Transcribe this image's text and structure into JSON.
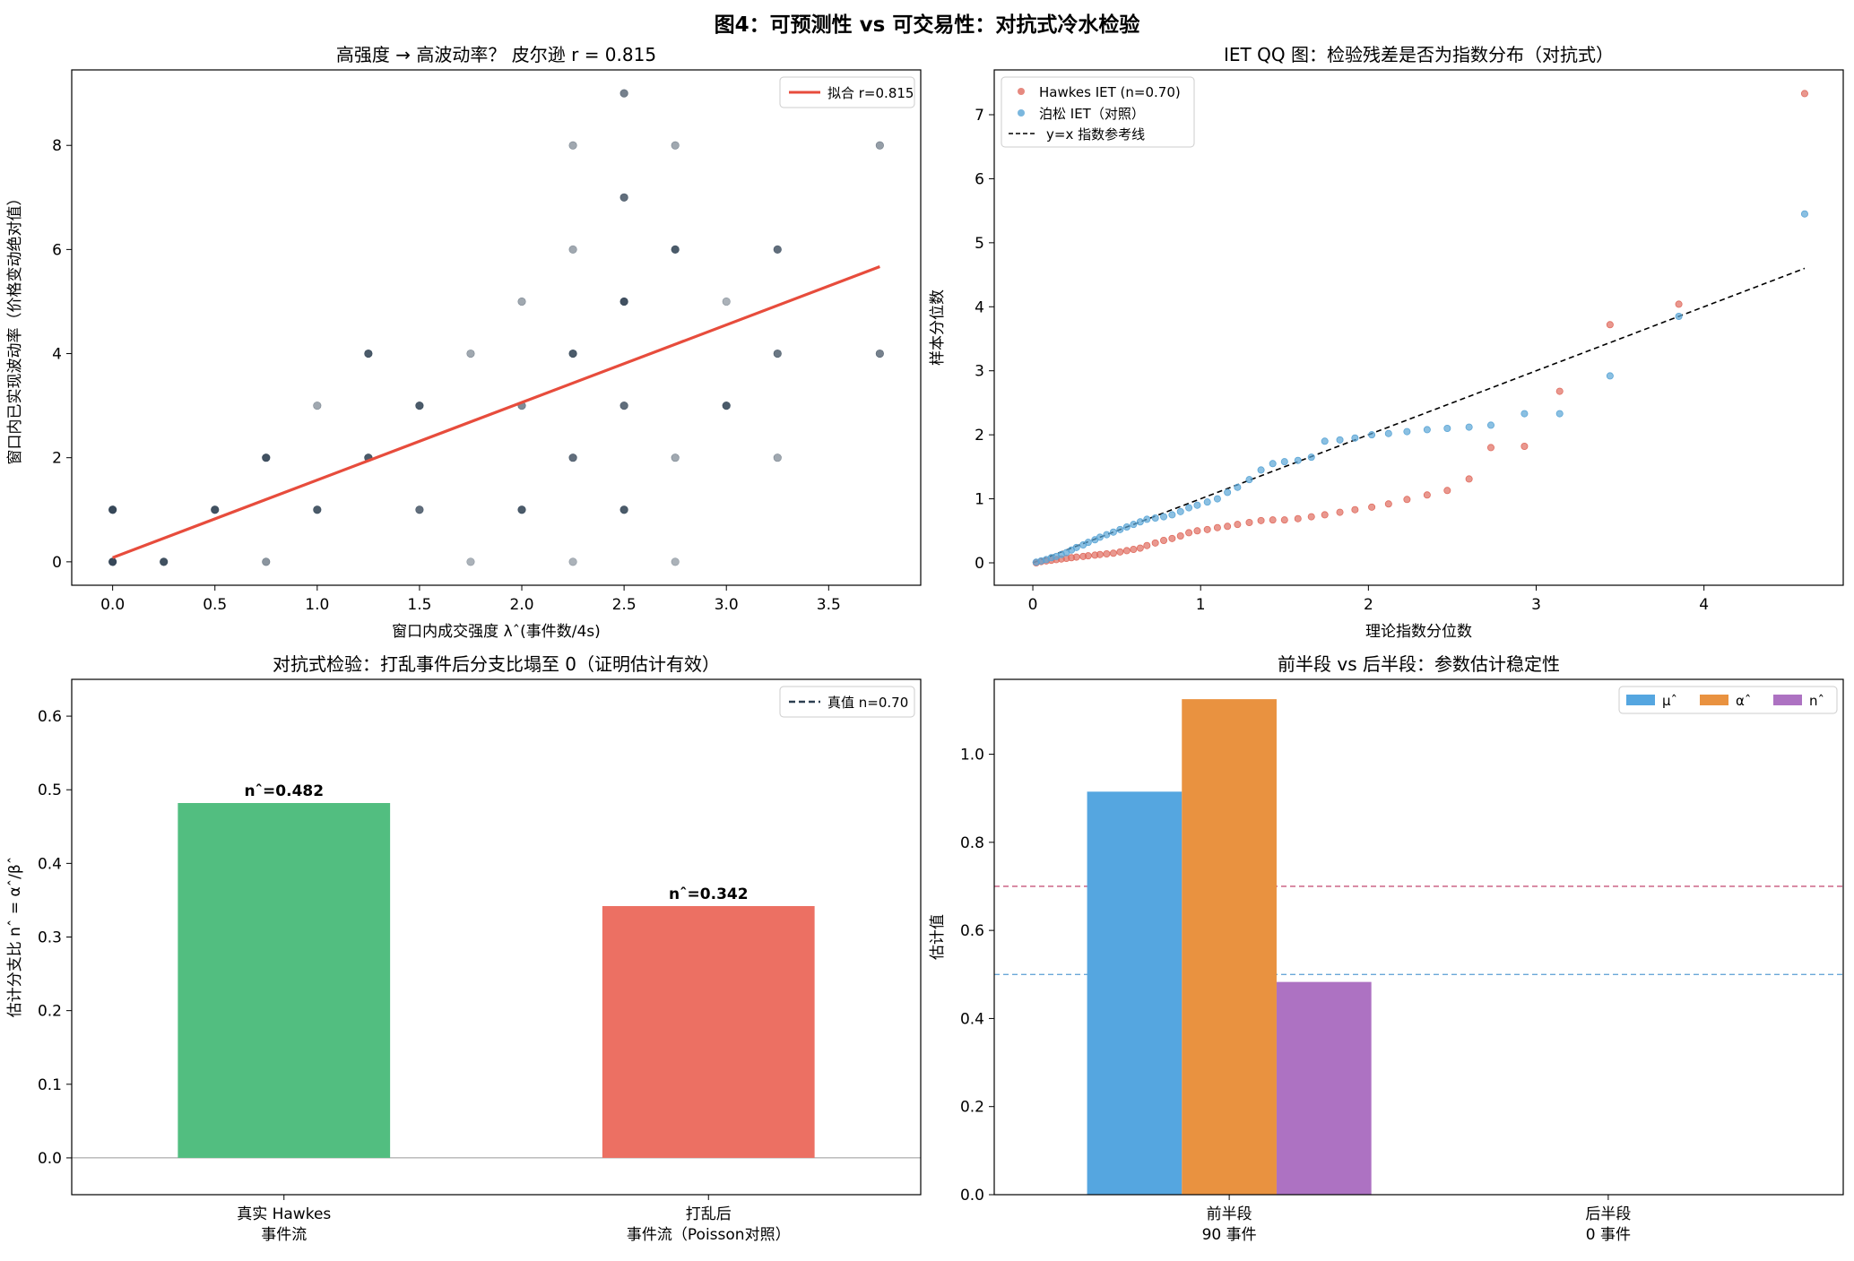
{
  "figure": {
    "suptitle": "图4：可预测性 vs 可交易性：对抗式冷水检验"
  },
  "chart_data": [
    {
      "type": "scatter",
      "title": "高强度 → 高波动率？ 皮尔逊 r = 0.815",
      "xlabel": "窗口内成交强度 λˆ(事件数/4s)",
      "ylabel": "窗口内已实现波动率（价格变动绝对值）",
      "xlim": [
        -0.2,
        3.95
      ],
      "ylim": [
        -0.45,
        9.45
      ],
      "xticks": [
        "0.0",
        "0.5",
        "1.0",
        "1.5",
        "2.0",
        "2.5",
        "3.0",
        "3.5"
      ],
      "yticks": [
        "0",
        "2",
        "4",
        "6",
        "8"
      ],
      "grid": false,
      "legend": "upper right",
      "series": [
        {
          "kind": "points",
          "color": "#2c3e50",
          "points": [
            [
              0,
              0,
              0.95
            ],
            [
              0,
              1,
              0.95
            ],
            [
              0.25,
              0,
              0.9
            ],
            [
              0.5,
              1,
              0.9
            ],
            [
              0.75,
              2,
              0.9
            ],
            [
              0.75,
              0,
              0.55
            ],
            [
              1.0,
              1,
              0.85
            ],
            [
              1.0,
              3,
              0.45
            ],
            [
              1.25,
              4,
              0.85
            ],
            [
              1.25,
              2,
              0.85
            ],
            [
              1.5,
              3,
              0.85
            ],
            [
              1.5,
              1,
              0.75
            ],
            [
              1.75,
              4,
              0.45
            ],
            [
              1.75,
              0,
              0.4
            ],
            [
              2.0,
              5,
              0.45
            ],
            [
              2.0,
              3,
              0.6
            ],
            [
              2.0,
              1,
              0.85
            ],
            [
              2.25,
              8,
              0.45
            ],
            [
              2.25,
              6,
              0.45
            ],
            [
              2.25,
              4,
              0.85
            ],
            [
              2.25,
              2,
              0.75
            ],
            [
              2.25,
              0,
              0.4
            ],
            [
              2.5,
              9,
              0.65
            ],
            [
              2.5,
              7,
              0.75
            ],
            [
              2.5,
              5,
              0.9
            ],
            [
              2.5,
              3,
              0.75
            ],
            [
              2.5,
              1,
              0.85
            ],
            [
              2.75,
              8,
              0.45
            ],
            [
              2.75,
              6,
              0.85
            ],
            [
              2.75,
              2,
              0.45
            ],
            [
              2.75,
              0,
              0.4
            ],
            [
              3.0,
              5,
              0.4
            ],
            [
              3.0,
              3,
              0.85
            ],
            [
              3.25,
              6,
              0.75
            ],
            [
              3.25,
              4,
              0.7
            ],
            [
              3.25,
              2,
              0.45
            ],
            [
              3.75,
              8,
              0.5
            ],
            [
              3.75,
              4,
              0.65
            ]
          ]
        },
        {
          "kind": "line",
          "name": "拟合  r=0.815",
          "color": "#e74c3c",
          "x": [
            0,
            3.75
          ],
          "y": [
            0.08,
            5.67
          ]
        }
      ]
    },
    {
      "type": "scatter",
      "title": "IET QQ 图：检验残差是否为指数分布（对抗式）",
      "xlabel": "理论指数分位数",
      "ylabel": "样本分位数",
      "xlim": [
        -0.23,
        4.83
      ],
      "ylim": [
        -0.35,
        7.7
      ],
      "xticks": [
        "0",
        "1",
        "2",
        "3",
        "4"
      ],
      "yticks": [
        "0",
        "1",
        "2",
        "3",
        "4",
        "5",
        "6",
        "7"
      ],
      "grid": false,
      "legend": "upper left",
      "series": [
        {
          "kind": "points",
          "name": "Hawkes IET (n=0.70)",
          "color": "#e06c5f",
          "x": [
            0.02,
            0.05,
            0.08,
            0.11,
            0.14,
            0.17,
            0.2,
            0.23,
            0.26,
            0.3,
            0.33,
            0.37,
            0.4,
            0.44,
            0.48,
            0.52,
            0.56,
            0.6,
            0.64,
            0.68,
            0.73,
            0.78,
            0.83,
            0.88,
            0.93,
            0.98,
            1.04,
            1.1,
            1.16,
            1.22,
            1.29,
            1.36,
            1.43,
            1.5,
            1.58,
            1.66,
            1.74,
            1.83,
            1.92,
            2.02,
            2.12,
            2.23,
            2.35,
            2.47,
            2.6,
            2.73,
            2.93,
            3.14,
            3.44,
            3.85,
            4.6
          ],
          "y": [
            0.0,
            0.02,
            0.03,
            0.04,
            0.05,
            0.06,
            0.07,
            0.08,
            0.09,
            0.1,
            0.11,
            0.12,
            0.13,
            0.14,
            0.15,
            0.17,
            0.19,
            0.21,
            0.23,
            0.27,
            0.31,
            0.35,
            0.38,
            0.42,
            0.47,
            0.5,
            0.52,
            0.55,
            0.57,
            0.6,
            0.63,
            0.66,
            0.67,
            0.67,
            0.69,
            0.72,
            0.75,
            0.79,
            0.83,
            0.87,
            0.92,
            0.99,
            1.06,
            1.13,
            1.31,
            1.8,
            1.82,
            2.68,
            3.72,
            4.04,
            7.33
          ]
        },
        {
          "kind": "points",
          "name": "泊松 IET（对照）",
          "color": "#5aa5d6",
          "x": [
            0.02,
            0.05,
            0.08,
            0.11,
            0.14,
            0.17,
            0.2,
            0.23,
            0.26,
            0.3,
            0.33,
            0.37,
            0.4,
            0.44,
            0.48,
            0.52,
            0.56,
            0.6,
            0.64,
            0.68,
            0.73,
            0.78,
            0.83,
            0.88,
            0.93,
            0.98,
            1.04,
            1.1,
            1.16,
            1.22,
            1.29,
            1.36,
            1.43,
            1.5,
            1.58,
            1.66,
            1.74,
            1.83,
            1.92,
            2.02,
            2.12,
            2.23,
            2.35,
            2.47,
            2.6,
            2.73,
            2.93,
            3.14,
            3.44,
            3.85,
            4.6
          ],
          "y": [
            0.01,
            0.03,
            0.05,
            0.08,
            0.1,
            0.13,
            0.16,
            0.2,
            0.24,
            0.28,
            0.32,
            0.36,
            0.4,
            0.44,
            0.48,
            0.52,
            0.56,
            0.6,
            0.64,
            0.68,
            0.7,
            0.72,
            0.75,
            0.8,
            0.86,
            0.9,
            0.95,
            1.0,
            1.1,
            1.18,
            1.3,
            1.45,
            1.55,
            1.58,
            1.6,
            1.65,
            1.9,
            1.92,
            1.95,
            2.0,
            2.02,
            2.05,
            2.08,
            2.1,
            2.12,
            2.15,
            2.33,
            2.33,
            2.92,
            3.85,
            5.45
          ]
        },
        {
          "kind": "line",
          "name": "y=x 指数参考线",
          "color": "#000000",
          "dashed": true,
          "x": [
            0,
            4.6
          ],
          "y": [
            0,
            4.6
          ]
        }
      ]
    },
    {
      "type": "bar",
      "title": "对抗式检验：打乱事件后分支比塌至 0（证明估计有效）",
      "ylabel": "估计分支比 nˆ = αˆ/βˆ",
      "ylim": [
        -0.05,
        0.65
      ],
      "yticks": [
        "0.0",
        "0.1",
        "0.2",
        "0.3",
        "0.4",
        "0.5",
        "0.6"
      ],
      "categories": [
        [
          "真实 Hawkes",
          "事件流"
        ],
        [
          "打乱后",
          "事件流（Poisson对照）"
        ]
      ],
      "values": [
        0.482,
        0.342
      ],
      "colors": [
        "#52be80",
        "#ec7063"
      ],
      "bar_labels": [
        "nˆ=0.482",
        "nˆ=0.342"
      ],
      "reference": {
        "name": "真值 n=0.70",
        "value": 0.7,
        "color": "#2c3e50",
        "dashed": true
      },
      "legend": "upper right"
    },
    {
      "type": "bar",
      "title": "前半段 vs 后半段：参数估计稳定性",
      "ylabel": "估计值",
      "ylim": [
        0,
        1.17
      ],
      "yticks": [
        "0.0",
        "0.2",
        "0.4",
        "0.6",
        "0.8",
        "1.0"
      ],
      "categories": [
        [
          "前半段",
          "90 事件"
        ],
        [
          "后半段",
          "0 事件"
        ]
      ],
      "series": [
        {
          "name": "μˆ",
          "color": "#55a6e0",
          "values": [
            0.915,
            0
          ]
        },
        {
          "name": "αˆ",
          "color": "#e99240",
          "values": [
            1.125,
            0
          ]
        },
        {
          "name": "nˆ",
          "color": "#ad72c2",
          "values": [
            0.483,
            0
          ]
        }
      ],
      "reference_lines": [
        {
          "value": 0.7,
          "color": "#c8567c"
        },
        {
          "value": 0.5,
          "color": "#6aa8d8"
        }
      ],
      "legend": "upper right"
    }
  ]
}
